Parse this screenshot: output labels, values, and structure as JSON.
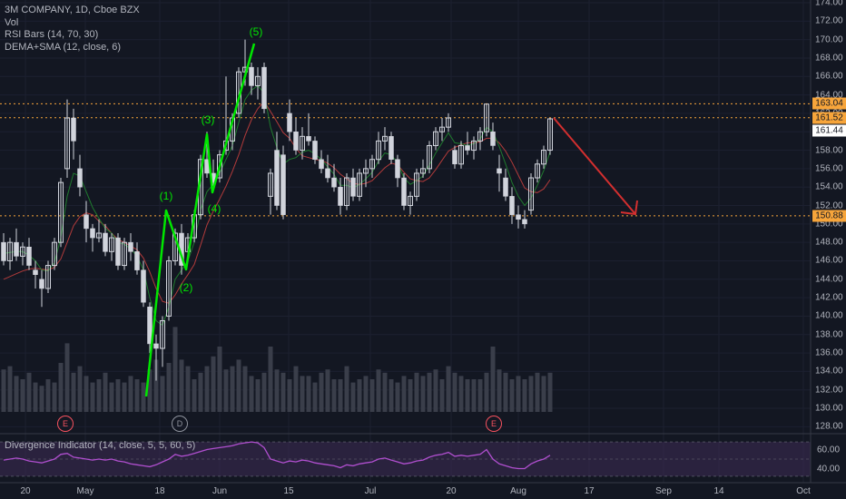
{
  "legend": {
    "symbol": "3M COMPANY, 1D, Cboe BZX",
    "volume": "Vol",
    "rsi_bars": "RSI Bars (14, 70, 30)",
    "dema_sma": "DEMA+SMA (12, close, 6)"
  },
  "indicator_pane": {
    "title": "Divergence Indicator (14, close, 5, 5, 60, 5)",
    "scale": [
      "60.00",
      "40.00"
    ]
  },
  "price_axis": {
    "ticks": [
      "174.00",
      "172.00",
      "170.00",
      "168.00",
      "166.00",
      "164.00",
      "162.00",
      "160.00",
      "158.00",
      "156.00",
      "154.00",
      "152.00",
      "150.00",
      "148.00",
      "146.00",
      "144.00",
      "142.00",
      "140.00",
      "138.00",
      "136.00",
      "134.00",
      "132.00",
      "130.00",
      "128.00"
    ]
  },
  "price_tags": [
    {
      "text": "163.04",
      "bg": "#f7a53b",
      "fg": "#131722"
    },
    {
      "text": "161.52",
      "bg": "#f7a53b",
      "fg": "#131722"
    },
    {
      "text": "161.44",
      "bg": "#ffffff",
      "fg": "#131722"
    },
    {
      "text": "150.88",
      "bg": "#f7a53b",
      "fg": "#131722"
    }
  ],
  "time_axis": {
    "labels": [
      "20",
      "May",
      "18",
      "Jun",
      "15",
      "Jul",
      "20",
      "Aug",
      "17",
      "Sep",
      "14",
      "Oct"
    ]
  },
  "wave_labels": [
    "(1)",
    "(2)",
    "(3)",
    "(4)",
    "(5)"
  ],
  "event_markers": [
    "E",
    "D",
    "E"
  ],
  "colors": {
    "background": "#131722",
    "candle": "#d1d4dc",
    "volume": "#3a3e4a",
    "dema": "#1f7a2e",
    "sma": "#b23b3b",
    "horizontal_level": "#f7a53b",
    "elliott_wave": "#00e600",
    "projection_arrow": "#d32f2f",
    "oscillator_line": "#b04fcf",
    "oscillator_band": "#3b2a52"
  },
  "chart_data": {
    "type": "candlestick",
    "levels": [
      163.04,
      161.52,
      150.88
    ],
    "last_price": 161.44,
    "ylim": [
      127.5,
      174.5
    ],
    "ohlc": [
      [
        148.0,
        149.0,
        145.5,
        146.0
      ],
      [
        146.0,
        148.5,
        145.0,
        148.0
      ],
      [
        148.0,
        149.5,
        146.0,
        146.5
      ],
      [
        146.5,
        148.0,
        145.5,
        147.5
      ],
      [
        147.5,
        148.5,
        145.0,
        145.5
      ],
      [
        145.0,
        146.0,
        143.0,
        144.5
      ],
      [
        144.0,
        145.0,
        141.0,
        143.0
      ],
      [
        143.0,
        146.0,
        142.5,
        145.5
      ],
      [
        145.5,
        148.5,
        145.0,
        148.0
      ],
      [
        148.0,
        155.0,
        147.5,
        154.5
      ],
      [
        156.0,
        163.5,
        155.0,
        161.5
      ],
      [
        161.5,
        162.5,
        157.0,
        159.0
      ],
      [
        156.0,
        157.5,
        153.0,
        154.0
      ],
      [
        151.0,
        152.5,
        148.0,
        149.5
      ],
      [
        149.5,
        150.0,
        147.0,
        148.5
      ],
      [
        148.5,
        150.5,
        148.0,
        149.0
      ],
      [
        149.0,
        150.0,
        146.5,
        147.0
      ],
      [
        147.0,
        149.0,
        146.0,
        148.5
      ],
      [
        148.5,
        149.0,
        145.0,
        145.5
      ],
      [
        145.5,
        148.5,
        145.0,
        148.0
      ],
      [
        148.0,
        149.0,
        146.0,
        147.0
      ],
      [
        147.0,
        148.0,
        144.5,
        145.0
      ],
      [
        145.0,
        146.0,
        141.0,
        141.5
      ],
      [
        141.0,
        141.5,
        136.0,
        137.0
      ],
      [
        137.0,
        138.0,
        133.0,
        136.5
      ],
      [
        136.5,
        140.0,
        134.5,
        139.5
      ],
      [
        140.0,
        146.5,
        139.5,
        146.0
      ],
      [
        146.0,
        149.5,
        145.5,
        149.0
      ],
      [
        149.0,
        150.0,
        144.5,
        145.5
      ],
      [
        147.0,
        149.0,
        146.0,
        148.5
      ],
      [
        148.5,
        151.5,
        148.0,
        151.0
      ],
      [
        151.0,
        157.5,
        150.5,
        157.0
      ],
      [
        157.0,
        160.0,
        155.0,
        155.5
      ],
      [
        155.5,
        157.0,
        153.5,
        154.5
      ],
      [
        155.0,
        158.0,
        154.5,
        157.5
      ],
      [
        158.0,
        166.0,
        157.5,
        159.0
      ],
      [
        159.0,
        162.0,
        158.0,
        161.5
      ],
      [
        162.0,
        167.0,
        161.5,
        166.5
      ],
      [
        166.5,
        170.0,
        165.0,
        167.0
      ],
      [
        167.0,
        167.5,
        164.0,
        165.0
      ],
      [
        165.0,
        167.0,
        163.5,
        166.0
      ],
      [
        167.0,
        167.5,
        162.0,
        162.5
      ],
      [
        153.0,
        156.0,
        151.0,
        155.5
      ],
      [
        158.0,
        160.0,
        151.5,
        152.0
      ],
      [
        157.5,
        158.5,
        150.5,
        151.0
      ],
      [
        162.0,
        163.5,
        159.0,
        160.0
      ],
      [
        160.0,
        161.5,
        157.5,
        158.0
      ],
      [
        158.0,
        160.5,
        157.0,
        159.5
      ],
      [
        159.5,
        162.0,
        158.5,
        159.0
      ],
      [
        159.0,
        159.5,
        156.5,
        157.0
      ],
      [
        157.0,
        158.0,
        155.5,
        156.0
      ],
      [
        156.0,
        157.5,
        154.5,
        155.0
      ],
      [
        155.0,
        156.5,
        153.5,
        154.0
      ],
      [
        154.0,
        155.0,
        151.0,
        152.0
      ],
      [
        152.0,
        155.5,
        151.5,
        155.0
      ],
      [
        155.0,
        156.0,
        152.5,
        153.0
      ],
      [
        153.0,
        156.0,
        152.5,
        155.5
      ],
      [
        155.5,
        157.0,
        154.0,
        156.0
      ],
      [
        156.0,
        157.5,
        155.0,
        157.0
      ],
      [
        157.0,
        160.0,
        156.5,
        159.0
      ],
      [
        159.0,
        160.5,
        158.0,
        159.5
      ],
      [
        159.5,
        160.0,
        156.5,
        157.0
      ],
      [
        157.0,
        157.5,
        154.0,
        155.0
      ],
      [
        155.0,
        155.5,
        151.5,
        152.0
      ],
      [
        152.0,
        153.5,
        151.0,
        153.0
      ],
      [
        153.0,
        156.0,
        152.5,
        155.5
      ],
      [
        155.5,
        157.0,
        155.0,
        156.0
      ],
      [
        156.0,
        159.0,
        155.5,
        158.5
      ],
      [
        158.5,
        160.5,
        158.0,
        160.0
      ],
      [
        160.0,
        161.5,
        159.0,
        160.5
      ],
      [
        160.5,
        162.0,
        160.0,
        161.5
      ],
      [
        158.0,
        158.5,
        156.0,
        156.5
      ],
      [
        156.5,
        159.0,
        156.0,
        158.5
      ],
      [
        158.5,
        160.0,
        157.5,
        158.0
      ],
      [
        158.0,
        159.5,
        157.0,
        159.0
      ],
      [
        159.0,
        160.5,
        158.0,
        160.0
      ],
      [
        160.0,
        163.0,
        159.5,
        163.0
      ],
      [
        160.0,
        161.0,
        158.0,
        158.5
      ],
      [
        156.0,
        157.5,
        153.5,
        155.5
      ],
      [
        155.0,
        156.0,
        152.5,
        153.0
      ],
      [
        153.0,
        154.0,
        150.0,
        151.0
      ],
      [
        151.0,
        152.0,
        149.5,
        150.5
      ],
      [
        150.5,
        151.5,
        149.5,
        150.0
      ],
      [
        151.5,
        155.5,
        151.0,
        155.0
      ],
      [
        155.0,
        157.0,
        154.5,
        156.5
      ],
      [
        156.5,
        158.5,
        156.0,
        158.0
      ],
      [
        158.0,
        161.5,
        157.5,
        161.4
      ]
    ],
    "volume": [
      13,
      14,
      11,
      10,
      12,
      9,
      8,
      10,
      9,
      15,
      21,
      12,
      14,
      11,
      9,
      10,
      12,
      9,
      10,
      9,
      11,
      10,
      9,
      13,
      16,
      11,
      15,
      26,
      16,
      14,
      10,
      12,
      14,
      17,
      20,
      13,
      14,
      16,
      14,
      11,
      10,
      12,
      20,
      13,
      12,
      10,
      14,
      11,
      11,
      9,
      12,
      13,
      10,
      10,
      14,
      9,
      10,
      11,
      10,
      13,
      12,
      10,
      9,
      11,
      10,
      12,
      11,
      12,
      13,
      10,
      14,
      12,
      11,
      10,
      10,
      10,
      12,
      20,
      13,
      12,
      10,
      11,
      10,
      11,
      12,
      11,
      12
    ],
    "dema": [
      146.8,
      146.9,
      147.0,
      147.0,
      146.6,
      146.0,
      145.0,
      144.9,
      145.8,
      148.5,
      153.0,
      155.5,
      155.2,
      153.5,
      151.8,
      150.6,
      149.5,
      149.0,
      148.0,
      147.8,
      147.3,
      146.5,
      145.0,
      142.0,
      139.5,
      139.0,
      141.0,
      144.0,
      145.0,
      146.0,
      148.0,
      151.5,
      153.5,
      154.3,
      155.5,
      157.0,
      158.5,
      161.0,
      163.5,
      164.5,
      165.0,
      164.2,
      160.5,
      158.3,
      156.5,
      157.0,
      157.2,
      157.8,
      158.0,
      157.6,
      157.0,
      156.2,
      155.4,
      154.2,
      154.2,
      153.9,
      154.3,
      154.9,
      155.6,
      156.8,
      157.7,
      157.5,
      156.6,
      155.0,
      154.3,
      154.7,
      155.2,
      156.4,
      157.7,
      158.8,
      159.9,
      158.8,
      158.7,
      158.5,
      158.7,
      159.2,
      160.5,
      160.0,
      158.4,
      156.5,
      154.5,
      153.0,
      152.0,
      152.8,
      154.2,
      155.8,
      157.8
    ],
    "sma": [
      144.0,
      144.3,
      144.6,
      144.9,
      145.1,
      145.2,
      145.1,
      145.0,
      145.3,
      146.2,
      148.0,
      149.8,
      150.8,
      151.2,
      151.0,
      150.3,
      149.8,
      149.0,
      148.3,
      148.0,
      147.6,
      147.2,
      146.3,
      144.8,
      143.0,
      141.6,
      141.4,
      142.3,
      143.5,
      144.5,
      145.6,
      147.7,
      149.9,
      151.4,
      152.7,
      154.1,
      155.7,
      157.5,
      159.6,
      161.3,
      162.5,
      163.3,
      162.2,
      161.1,
      159.9,
      159.3,
      158.2,
      157.4,
      157.2,
      157.0,
      156.9,
      156.6,
      156.1,
      155.4,
      154.9,
      154.4,
      154.3,
      154.4,
      154.7,
      155.4,
      156.1,
      156.6,
      156.4,
      155.6,
      154.9,
      154.7,
      154.6,
      155.0,
      155.9,
      156.9,
      157.9,
      158.3,
      158.6,
      158.8,
      158.8,
      158.9,
      159.3,
      159.3,
      158.8,
      157.9,
      156.7,
      155.3,
      153.9,
      153.5,
      153.4,
      153.8,
      154.8
    ],
    "oscillator": [
      49,
      50,
      51,
      50,
      48,
      47,
      46,
      48,
      50,
      55,
      56,
      52,
      51,
      50,
      49,
      50,
      49,
      50,
      48,
      47,
      45,
      44,
      43,
      42,
      44,
      47,
      50,
      55,
      53,
      54,
      56,
      58,
      60,
      61,
      62,
      63,
      64,
      66,
      67,
      68,
      67,
      62,
      50,
      48,
      46,
      48,
      47,
      49,
      48,
      46,
      45,
      44,
      43,
      41,
      44,
      43,
      45,
      46,
      47,
      50,
      51,
      49,
      47,
      45,
      46,
      48,
      49,
      52,
      54,
      55,
      57,
      53,
      54,
      53,
      54,
      55,
      60,
      50,
      45,
      43,
      41,
      40,
      40,
      45,
      48,
      50,
      54
    ]
  }
}
